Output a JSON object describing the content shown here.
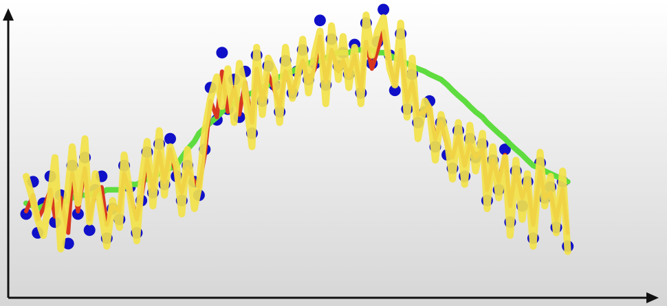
{
  "theme": {
    "background_top": "#ffffff",
    "background_bottom": "#d6d6d6",
    "axis_color": "#111111",
    "point_color": "#1010c8",
    "noisy_line_color": "#f2e24a",
    "medium_line_color": "#d8371f",
    "smooth_line_color": "#5fdc3f"
  },
  "chart_data": {
    "type": "scatter",
    "title": "",
    "xlabel": "",
    "ylabel": "",
    "xlim": [
      0,
      100
    ],
    "ylim": [
      0,
      100
    ],
    "grid": false,
    "legend": "none",
    "x": [
      0,
      1.2,
      2,
      3,
      4.2,
      5,
      6,
      7.3,
      8,
      9,
      10.2,
      11,
      12,
      13.1,
      14,
      15,
      16.2,
      17,
      18,
      19.2,
      20,
      21,
      22,
      23.1,
      24,
      25,
      26.1,
      27,
      28,
      29.2,
      30,
      31,
      32,
      33.1,
      34,
      35,
      36.1,
      37,
      38,
      39.2,
      40,
      41,
      42,
      43.1,
      44,
      45,
      46.2,
      47,
      48,
      49,
      50.1,
      51,
      52,
      53,
      54.2,
      55,
      56,
      57,
      58.1,
      59,
      60,
      61,
      62,
      63.1,
      64,
      65,
      66.1,
      67,
      68,
      69.2,
      70,
      71,
      72,
      73.1,
      74,
      75,
      76.1,
      77,
      78,
      79.2,
      80,
      81,
      82,
      83.1,
      84,
      85,
      86.1,
      87,
      88,
      89.2,
      90,
      91,
      92,
      93.1,
      94
    ],
    "series": [
      {
        "values": [
          24,
          36,
          17,
          28,
          38,
          21,
          31,
          13,
          42,
          24,
          45,
          18,
          33,
          38,
          15,
          26,
          22,
          42,
          34,
          17,
          29,
          47,
          32,
          50,
          35,
          52,
          38,
          29,
          42,
          36,
          31,
          48,
          71,
          59,
          84,
          63,
          74,
          60,
          77,
          54,
          83,
          66,
          79,
          72,
          62,
          81,
          69,
          77,
          85,
          74,
          80,
          96,
          72,
          89,
          79,
          84,
          76,
          87,
          69,
          95,
          80,
          88,
          100,
          83,
          70,
          91,
          63,
          76,
          58,
          62,
          66,
          49,
          58,
          46,
          41,
          55,
          38,
          52,
          45,
          50,
          29,
          44,
          33,
          48,
          21,
          40,
          27,
          36,
          15,
          43,
          30,
          34,
          19,
          36,
          12
        ]
      },
      {
        "values": [
          25,
          31,
          22,
          26,
          33,
          23,
          30,
          17,
          39,
          25,
          41,
          22,
          32,
          34,
          20,
          27,
          25,
          39,
          32,
          22,
          30,
          44,
          33,
          47,
          36,
          48,
          38,
          32,
          41,
          36,
          34,
          46,
          66,
          60,
          77,
          62,
          71,
          61,
          73,
          58,
          78,
          66,
          76,
          70,
          64,
          77,
          69,
          75,
          81,
          73,
          78,
          90,
          73,
          85,
          77,
          81,
          75,
          83,
          70,
          88,
          78,
          85,
          92,
          80,
          72,
          85,
          66,
          73,
          61,
          62,
          64,
          52,
          58,
          49,
          45,
          53,
          42,
          50,
          45,
          48,
          33,
          44,
          36,
          46,
          27,
          40,
          30,
          36,
          20,
          40,
          30,
          32,
          22,
          33,
          17
        ]
      },
      {
        "values": [
          28,
          27,
          26,
          27,
          28,
          27,
          28,
          29,
          30,
          31,
          31,
          31,
          32,
          32,
          33,
          33,
          33,
          34,
          35,
          35,
          36,
          37,
          38,
          39,
          40,
          41,
          42,
          45,
          48,
          51,
          54,
          56,
          58,
          60,
          62,
          64,
          65,
          66,
          68,
          69,
          70,
          71,
          72,
          74,
          75,
          76,
          77,
          78,
          79,
          80,
          81,
          81,
          82,
          83,
          84,
          84,
          84,
          85,
          85,
          85,
          85,
          84,
          84,
          83,
          82,
          81,
          80,
          79,
          78,
          77,
          76,
          75,
          74,
          72,
          70,
          68,
          66,
          64,
          62,
          60,
          58,
          56,
          54,
          52,
          50,
          48,
          46,
          44,
          42,
          41,
          40,
          39,
          38,
          37,
          36
        ]
      },
      {
        "values": [
          38,
          29,
          22,
          16,
          31,
          45,
          11,
          34,
          49,
          28,
          52,
          21,
          39,
          24,
          12,
          29,
          19,
          46,
          32,
          14,
          36,
          51,
          27,
          55,
          31,
          49,
          42,
          24,
          48,
          26,
          34,
          55,
          67,
          75,
          64,
          78,
          58,
          80,
          70,
          49,
          86,
          61,
          82,
          77,
          58,
          86,
          67,
          73,
          89,
          69,
          84,
          92,
          65,
          94,
          74,
          90,
          71,
          86,
          65,
          98,
          83,
          92,
          97,
          78,
          72,
          95,
          60,
          82,
          52,
          66,
          63,
          44,
          61,
          51,
          37,
          58,
          35,
          57,
          40,
          54,
          26,
          49,
          30,
          45,
          16,
          44,
          22,
          39,
          12,
          47,
          27,
          38,
          17,
          40,
          10
        ]
      }
    ]
  }
}
